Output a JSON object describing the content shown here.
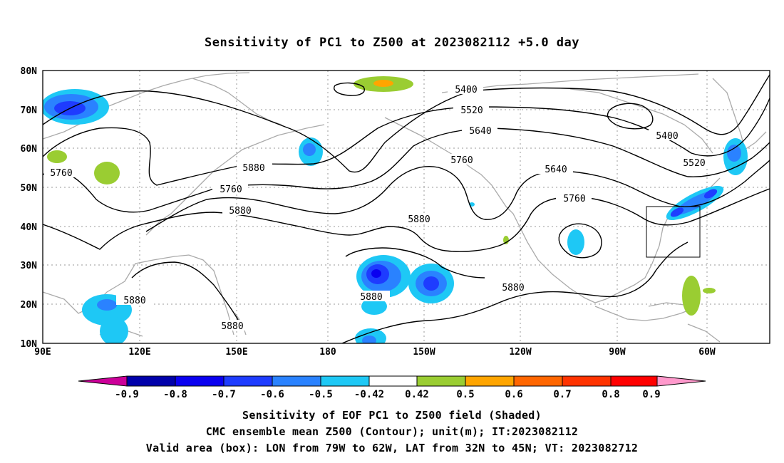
{
  "title": "Sensitivity of PC1 to Z500 at 2023082112 +5.0 day",
  "captions": {
    "line1": "Sensitivity of EOF PC1 to Z500 field (Shaded)",
    "line2": "CMC ensemble mean Z500 (Contour); unit(m); IT:2023082112",
    "line3": "Valid area (box): LON from 79W to 62W, LAT from 32N to 45N; VT: 2023082712"
  },
  "axes": {
    "lat_labels": [
      "80N",
      "70N",
      "60N",
      "50N",
      "40N",
      "30N",
      "20N",
      "10N"
    ],
    "lon_labels": [
      "90E",
      "120E",
      "150E",
      "180",
      "150W",
      "120W",
      "90W",
      "60W"
    ]
  },
  "contour_labels": [
    "5400",
    "5520",
    "5640",
    "5760",
    "5880",
    "5400",
    "5520",
    "5640",
    "5760",
    "5760",
    "5760",
    "5880",
    "5880",
    "5880",
    "5880",
    "5880",
    "5880"
  ],
  "colorbar": {
    "labels": [
      "-0.9",
      "-0.8",
      "-0.7",
      "-0.6",
      "-0.5",
      "-0.42",
      "0.42",
      "0.5",
      "0.6",
      "0.7",
      "0.8",
      "0.9"
    ],
    "colors": [
      "#cc0099",
      "#0000aa",
      "#0a00f0",
      "#1e3cff",
      "#2a82ff",
      "#1ec8f5",
      "#ffffff",
      "#9acd32",
      "#ffa500",
      "#ff6600",
      "#ff3300",
      "#ff0000",
      "#ff99cc"
    ]
  },
  "valid_box": {
    "lon_from": "79W",
    "lon_to": "62W",
    "lat_from": "32N",
    "lat_to": "45N"
  }
}
